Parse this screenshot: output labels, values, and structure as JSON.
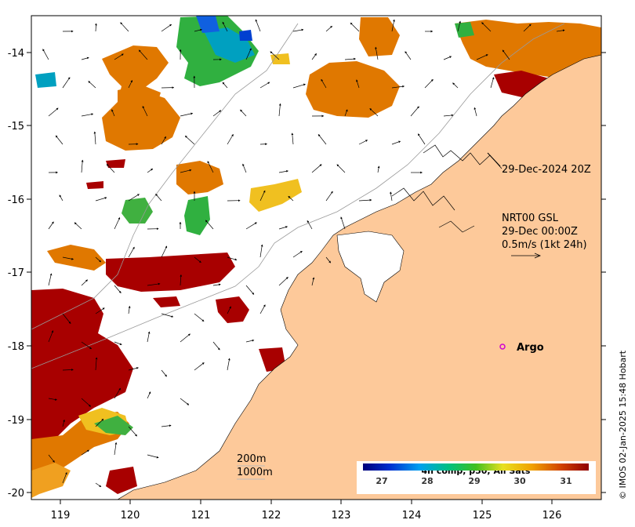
{
  "map": {
    "x_ticks": [
      "119",
      "120",
      "121",
      "122",
      "123",
      "124",
      "125",
      "126"
    ],
    "y_ticks": [
      "-14",
      "-15",
      "-16",
      "-17",
      "-18",
      "-19",
      "-20"
    ],
    "colors": {
      "land": "#fdc99a",
      "sea": "#ffffff",
      "sst_warmest": "#a80000",
      "sst_warm": "#e07800",
      "sst_mid": "#f0c020",
      "sst_cool": "#30b040",
      "sst_cold": "#1060e0",
      "argo_marker": "#d000d0"
    }
  },
  "annotations": {
    "swath_time": "29-Dec-2024 20Z",
    "current_source": "NRT00 GSL",
    "current_time": "29-Dec 00:00Z",
    "current_scale": "0.5m/s (1kt 24h)",
    "argo_label": "Argo",
    "isobath_200": "200m",
    "isobath_1000": "1000m"
  },
  "colorbar": {
    "title": "4h comp, p50, All Sats",
    "ticks": [
      "27",
      "28",
      "29",
      "30",
      "31"
    ]
  },
  "credit": "© IMOS 02-Jan-2025 15:48 Hobart"
}
